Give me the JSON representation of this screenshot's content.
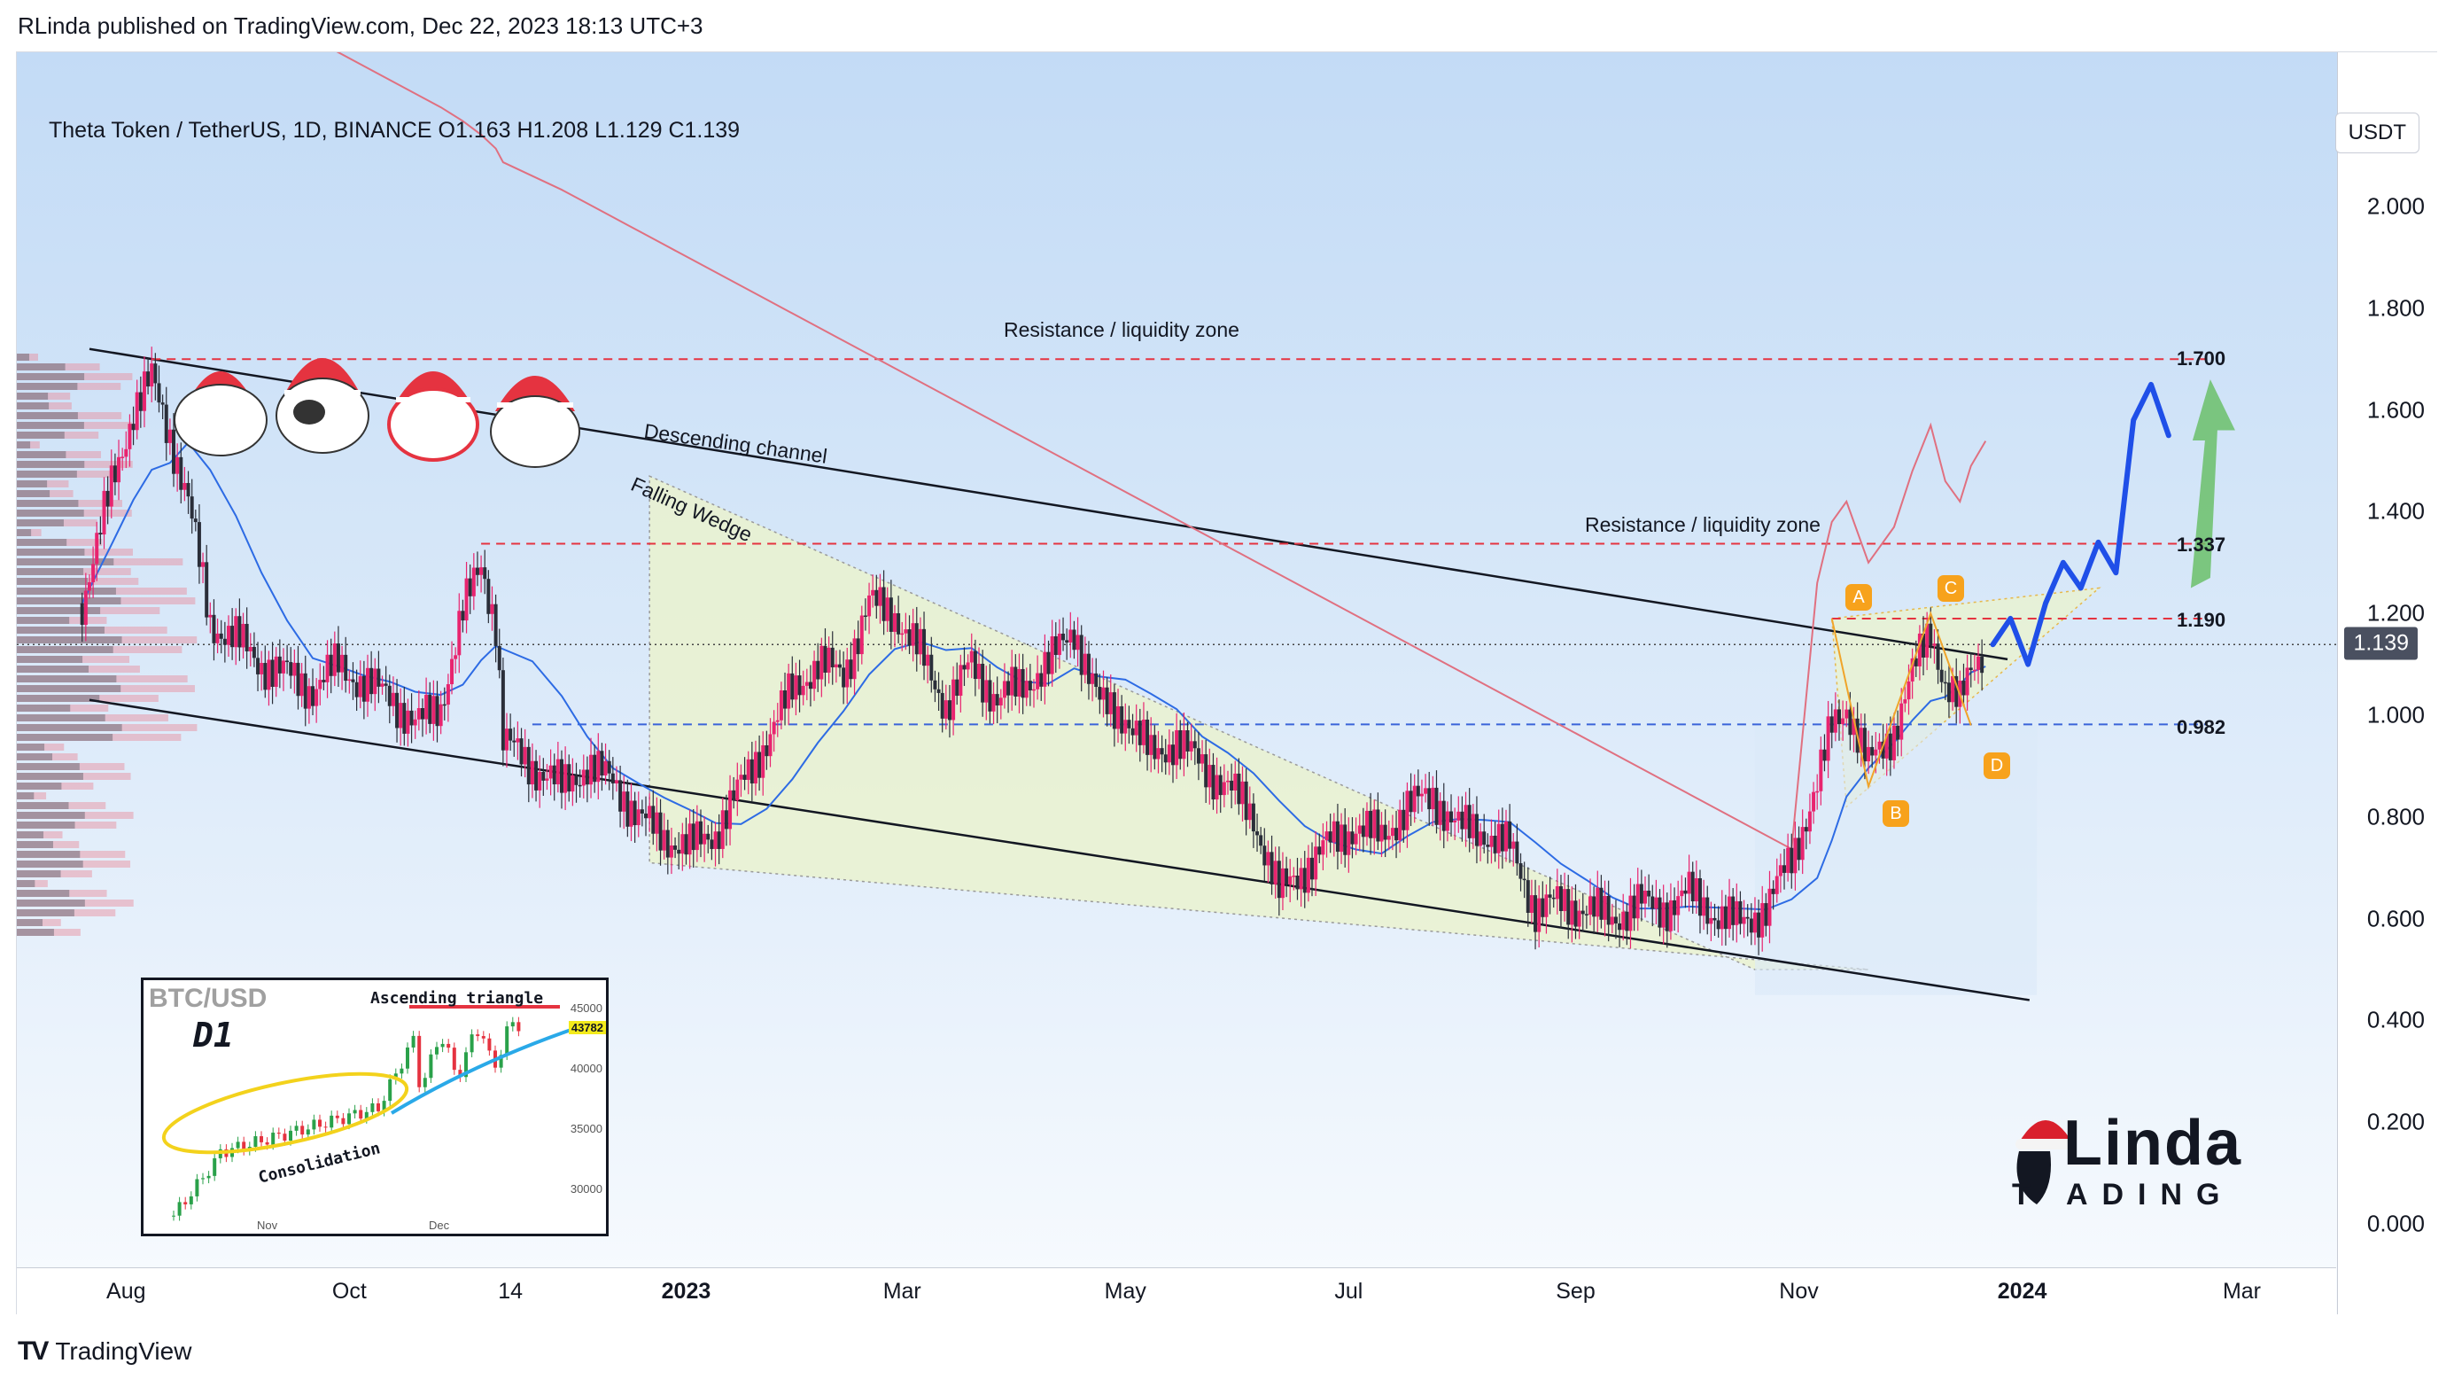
{
  "header": {
    "published_line": "RLinda published on TradingView.com, Dec 22, 2023 18:13 UTC+3"
  },
  "chart_title": "Theta Token / TetherUS, 1D, BINANCE  O1.163  H1.208  L1.129  C1.139",
  "currency_button": "USDT",
  "current_price_label": "1.139",
  "footer": {
    "brand": "TradingView",
    "icon": "tradingview-logo-icon"
  },
  "colors": {
    "bull": "#e8246f",
    "bear": "#2a2e39",
    "ma_fast": "#2d6be4",
    "ma_slow": "#e07080",
    "resistance": "#e53340",
    "support_dash": "#3a63d9",
    "wedge_fill": "#eaf2cf",
    "forecast_blue": "#1f4fe8",
    "forecast_green": "#6bbf6a",
    "point_badge": "#f7a21c"
  },
  "annotations": {
    "resistance_upper": "Resistance / liquidity zone",
    "resistance_lower": "Resistance / liquidity zone",
    "descending_channel": "Descending channel",
    "falling_wedge": "Falling Wedge",
    "points": [
      "A",
      "B",
      "C",
      "D"
    ]
  },
  "inset": {
    "title": "BTC/USD",
    "timeframe": "D1",
    "pattern": "Ascending triangle",
    "zone": "Consolidation",
    "price": "43782",
    "yticks": [
      "45000",
      "40000",
      "35000",
      "30000"
    ],
    "xticks": [
      "Nov",
      "Dec"
    ]
  },
  "logo": {
    "big": "Linda",
    "small": "T  ADING",
    "prefix": "R"
  },
  "chart_data": {
    "type": "candlestick",
    "title": "Theta Token / TetherUS, 1D, BINANCE",
    "ohlc_last": {
      "open": 1.163,
      "high": 1.208,
      "low": 1.129,
      "close": 1.139
    },
    "ylim": [
      0.0,
      2.2
    ],
    "yticks": [
      "2.000",
      "1.800",
      "1.600",
      "1.400",
      "1.200",
      "1.000",
      "0.800",
      "0.600",
      "0.400",
      "0.200",
      "0.000"
    ],
    "xticks": [
      "Aug",
      "Oct",
      "14",
      "2023",
      "Mar",
      "May",
      "Jul",
      "Sep",
      "Nov",
      "2024",
      "Mar"
    ],
    "xticks_bold": [
      "2023",
      "2024"
    ],
    "levels": [
      {
        "value": 1.7,
        "label": "1.700",
        "style": "red-dashed"
      },
      {
        "value": 1.337,
        "label": "1.337",
        "style": "red-dashed"
      },
      {
        "value": 1.19,
        "label": "1.190",
        "style": "red-dashed"
      },
      {
        "value": 0.982,
        "label": "0.982",
        "style": "blue-dashed"
      }
    ],
    "price_path": [
      [
        "2022-07-20",
        1.22
      ],
      [
        "2022-07-28",
        1.45
      ],
      [
        "2022-08-03",
        1.6
      ],
      [
        "2022-08-08",
        1.66
      ],
      [
        "2022-08-13",
        1.55
      ],
      [
        "2022-08-18",
        1.42
      ],
      [
        "2022-08-24",
        1.18
      ],
      [
        "2022-08-31",
        1.15
      ],
      [
        "2022-09-07",
        1.1
      ],
      [
        "2022-09-14",
        1.08
      ],
      [
        "2022-09-21",
        1.05
      ],
      [
        "2022-09-28",
        1.1
      ],
      [
        "2022-10-05",
        1.06
      ],
      [
        "2022-10-12",
        1.04
      ],
      [
        "2022-10-19",
        0.98
      ],
      [
        "2022-10-26",
        1.02
      ],
      [
        "2022-11-01",
        1.2
      ],
      [
        "2022-11-06",
        1.3
      ],
      [
        "2022-11-10",
        1.18
      ],
      [
        "2022-11-12",
        0.95
      ],
      [
        "2022-11-20",
        0.9
      ],
      [
        "2022-11-28",
        0.86
      ],
      [
        "2022-12-05",
        0.9
      ],
      [
        "2022-12-12",
        0.87
      ],
      [
        "2022-12-19",
        0.8
      ],
      [
        "2022-12-26",
        0.76
      ],
      [
        "2023-01-02",
        0.74
      ],
      [
        "2023-01-09",
        0.77
      ],
      [
        "2023-01-16",
        0.86
      ],
      [
        "2023-01-23",
        0.95
      ],
      [
        "2023-01-30",
        1.05
      ],
      [
        "2023-02-06",
        1.1
      ],
      [
        "2023-02-13",
        1.08
      ],
      [
        "2023-02-20",
        1.22
      ],
      [
        "2023-02-27",
        1.2
      ],
      [
        "2023-03-06",
        1.12
      ],
      [
        "2023-03-13",
        1.02
      ],
      [
        "2023-03-20",
        1.1
      ],
      [
        "2023-03-27",
        1.03
      ],
      [
        "2023-04-03",
        1.06
      ],
      [
        "2023-04-10",
        1.1
      ],
      [
        "2023-04-17",
        1.17
      ],
      [
        "2023-04-24",
        1.02
      ],
      [
        "2023-05-01",
        1.0
      ],
      [
        "2023-05-08",
        0.92
      ],
      [
        "2023-05-15",
        0.95
      ],
      [
        "2023-05-22",
        0.9
      ],
      [
        "2023-05-29",
        0.86
      ],
      [
        "2023-06-05",
        0.8
      ],
      [
        "2023-06-12",
        0.65
      ],
      [
        "2023-06-19",
        0.7
      ],
      [
        "2023-06-26",
        0.75
      ],
      [
        "2023-07-03",
        0.78
      ],
      [
        "2023-07-10",
        0.76
      ],
      [
        "2023-07-17",
        0.82
      ],
      [
        "2023-07-24",
        0.84
      ],
      [
        "2023-07-31",
        0.78
      ],
      [
        "2023-08-07",
        0.77
      ],
      [
        "2023-08-14",
        0.74
      ],
      [
        "2023-08-21",
        0.62
      ],
      [
        "2023-08-28",
        0.63
      ],
      [
        "2023-09-04",
        0.62
      ],
      [
        "2023-09-11",
        0.6
      ],
      [
        "2023-09-18",
        0.63
      ],
      [
        "2023-09-25",
        0.62
      ],
      [
        "2023-10-02",
        0.65
      ],
      [
        "2023-10-09",
        0.61
      ],
      [
        "2023-10-16",
        0.59
      ],
      [
        "2023-10-23",
        0.62
      ],
      [
        "2023-10-30",
        0.72
      ],
      [
        "2023-11-06",
        0.86
      ],
      [
        "2023-11-10",
        0.98
      ],
      [
        "2023-11-14",
        1.02
      ],
      [
        "2023-11-20",
        0.9
      ],
      [
        "2023-11-27",
        0.97
      ],
      [
        "2023-12-02",
        1.08
      ],
      [
        "2023-12-07",
        1.17
      ],
      [
        "2023-12-11",
        1.06
      ],
      [
        "2023-12-15",
        1.02
      ],
      [
        "2023-12-18",
        1.09
      ],
      [
        "2023-12-22",
        1.139
      ]
    ],
    "forecast_path_blue": [
      1.139,
      1.19,
      1.1,
      1.22,
      1.3,
      1.25,
      1.34,
      1.28,
      1.58,
      1.65,
      1.55
    ],
    "forecast_arrow_green": {
      "from": 1.25,
      "to": 1.64
    }
  }
}
